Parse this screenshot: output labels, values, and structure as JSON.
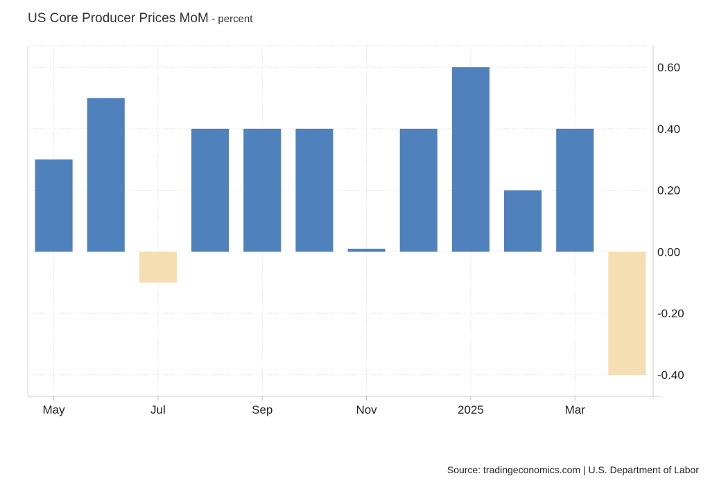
{
  "header": {
    "title": "US Core Producer Prices MoM",
    "unit": "- percent"
  },
  "footer": {
    "source": "Source: tradingeconomics.com | U.S. Department of Labor"
  },
  "colors": {
    "positive": "#4f81bd",
    "negative": "#f5dfb2",
    "grid": "#d9d9d9"
  },
  "chart_data": {
    "type": "bar",
    "categories": [
      "2024-05",
      "2024-06",
      "2024-07",
      "2024-08",
      "2024-09",
      "2024-10",
      "2024-11",
      "2024-12",
      "2025-01",
      "2025-02",
      "2025-03",
      "2025-04"
    ],
    "values": [
      0.3,
      0.5,
      -0.1,
      0.4,
      0.4,
      0.4,
      0.01,
      0.4,
      0.6,
      0.2,
      0.4,
      -0.4
    ],
    "x_tick_labels": [
      {
        "index": 0,
        "label": "May"
      },
      {
        "index": 2,
        "label": "Jul"
      },
      {
        "index": 4,
        "label": "Sep"
      },
      {
        "index": 6,
        "label": "Nov"
      },
      {
        "index": 8,
        "label": "2025"
      },
      {
        "index": 10,
        "label": "Mar"
      }
    ],
    "y_ticks": [
      -0.4,
      -0.2,
      0,
      0.2,
      0.4,
      0.6
    ],
    "y_tick_labels": [
      "-0.40",
      "-0.20",
      "0.00",
      "0.20",
      "0.40",
      "0.60"
    ],
    "ylim": [
      -0.47,
      0.67
    ],
    "yaxis_position": "right",
    "grid": true,
    "legend": "none"
  }
}
